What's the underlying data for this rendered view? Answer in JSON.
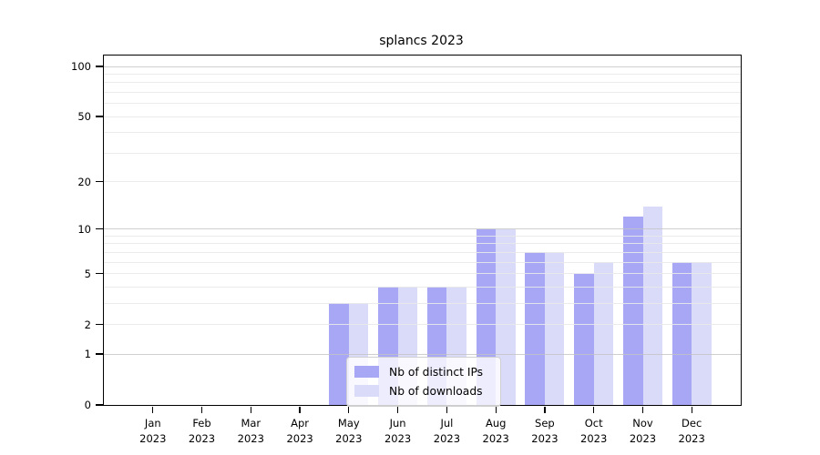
{
  "figure": {
    "title": "splancs 2023",
    "background_color": "#ffffff"
  },
  "chart_data": {
    "type": "bar",
    "title": "splancs 2023",
    "categories": [
      "Jan 2023",
      "Feb 2023",
      "Mar 2023",
      "Apr 2023",
      "May 2023",
      "Jun 2023",
      "Jul 2023",
      "Aug 2023",
      "Sep 2023",
      "Oct 2023",
      "Nov 2023",
      "Dec 2023"
    ],
    "x_tick_month": [
      "Jan",
      "Feb",
      "Mar",
      "Apr",
      "May",
      "Jun",
      "Jul",
      "Aug",
      "Sep",
      "Oct",
      "Nov",
      "Dec"
    ],
    "x_tick_year": "2023",
    "series": [
      {
        "name": "Nb of distinct IPs",
        "color": "#a7a7f6",
        "values": [
          0,
          0,
          0,
          0,
          3,
          4,
          4,
          10,
          7,
          5,
          12,
          6
        ]
      },
      {
        "name": "Nb of downloads",
        "color": "#dadaf9",
        "values": [
          0,
          0,
          0,
          0,
          3,
          4,
          4,
          10,
          7,
          6,
          14,
          6
        ]
      }
    ],
    "y_axis": {
      "scale": "log1p",
      "tick_values": [
        0,
        1,
        2,
        5,
        10,
        20,
        50,
        100
      ],
      "major_gridlines": [
        1,
        10,
        100
      ],
      "minor_gridlines": [
        2,
        3,
        4,
        5,
        6,
        7,
        8,
        9,
        20,
        30,
        40,
        50,
        60,
        70,
        80,
        90
      ],
      "top_value": 115
    },
    "legend": {
      "position": "lower center",
      "entries": [
        "Nb of distinct IPs",
        "Nb of downloads"
      ]
    },
    "grid": true,
    "xlabel": "",
    "ylabel": ""
  },
  "style": {
    "axis_color": "#000000",
    "grid_major_color": "#c3c3c3",
    "grid_minor_color": "#e9e9e9",
    "legend_border_color": "#d0d0d0"
  }
}
